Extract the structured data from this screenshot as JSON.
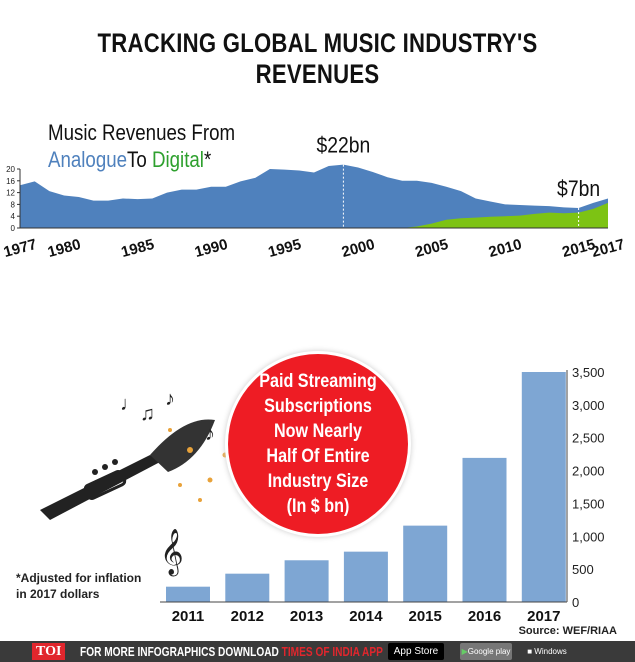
{
  "title": "TRACKING GLOBAL MUSIC INDUSTRY'S REVENUES",
  "colors": {
    "analogue": "#4f81bd",
    "digital": "#7dc314",
    "bars": "#7ea6d3",
    "bubble": "#ee1c24"
  },
  "chart_data": [
    {
      "type": "area",
      "title_line1": "Music Revenues From",
      "title_analogue": "Analogue",
      "title_to": "To ",
      "title_digital": "Digital",
      "title_star": "*",
      "ylim": [
        0,
        20
      ],
      "yticks": [
        "0",
        "4",
        "8",
        "12",
        "16",
        "20"
      ],
      "xticks": [
        "1977",
        "1980",
        "1985",
        "1990",
        "1995",
        "2000",
        "2005",
        "2010",
        "2015",
        "2017"
      ],
      "annotations": [
        {
          "year": 1999,
          "label": "$22bn"
        },
        {
          "year": 2015,
          "label": "$7bn"
        }
      ],
      "x": [
        1977,
        1978,
        1979,
        1980,
        1981,
        1982,
        1983,
        1984,
        1985,
        1986,
        1987,
        1988,
        1989,
        1990,
        1991,
        1992,
        1993,
        1994,
        1995,
        1996,
        1997,
        1998,
        1999,
        2000,
        2001,
        2002,
        2003,
        2004,
        2005,
        2006,
        2007,
        2008,
        2009,
        2010,
        2011,
        2012,
        2013,
        2014,
        2015,
        2016,
        2017
      ],
      "series": [
        {
          "name": "Analogue",
          "values": [
            14.5,
            15.8,
            12.5,
            11,
            10.5,
            9.3,
            9.3,
            10,
            9.8,
            10,
            12,
            13,
            13,
            14,
            14,
            15.8,
            17,
            20,
            19.8,
            19.5,
            18.8,
            21,
            21.5,
            20.5,
            19,
            17.2,
            16,
            16,
            15.3,
            14,
            12.5,
            10,
            9,
            8,
            7.8,
            7.6,
            7.4,
            7,
            6.8,
            8.5,
            10
          ]
        },
        {
          "name": "Digital",
          "values": [
            0,
            0,
            0,
            0,
            0,
            0,
            0,
            0,
            0,
            0,
            0,
            0,
            0,
            0,
            0,
            0,
            0,
            0,
            0,
            0,
            0,
            0,
            0,
            0,
            0,
            0,
            0,
            0.5,
            1.5,
            2.8,
            3.3,
            3.5,
            3.8,
            4,
            4.2,
            4.8,
            5.2,
            5,
            5.2,
            6.5,
            8.5
          ]
        }
      ]
    },
    {
      "type": "bar",
      "categories": [
        "2011",
        "2012",
        "2013",
        "2014",
        "2015",
        "2016",
        "2017"
      ],
      "values": [
        233,
        431,
        635,
        766,
        1162,
        2193,
        3500
      ],
      "ylim": [
        0,
        3500
      ],
      "yticks": [
        "0",
        "500",
        "1,000",
        "1,500",
        "2,000",
        "2,500",
        "3,000",
        "3,500"
      ],
      "annotation": [
        "Paid Streaming",
        "Subscriptions",
        "Now Nearly",
        "Half Of Entire",
        "Industry Size",
        "(In $ bn)"
      ]
    }
  ],
  "note": [
    "*Adjusted for inflation",
    "in 2017 dollars"
  ],
  "source": "Source: WEF/RIAA",
  "footer": {
    "logo": "TOI",
    "text": "FOR MORE  INFOGRAPHICS DOWNLOAD ",
    "app": "TIMES OF INDIA  APP",
    "app_store": "App Store",
    "google_play": "Google play",
    "windows": "Windows Phone"
  }
}
